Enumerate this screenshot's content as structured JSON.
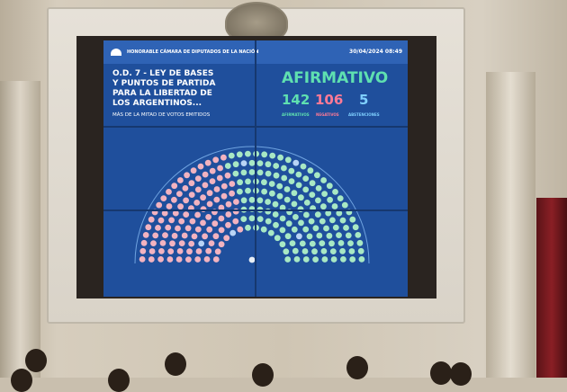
{
  "screen": {
    "institution": "HONORABLE CÁMARA DE DIPUTADOS DE LA NACIÓN",
    "datetime": "30/04/2024 08:49",
    "title_lines": [
      "O.D. 7 - LEY DE BASES",
      "Y PUNTOS DE PARTIDA",
      "PARA LA LIBERTAD DE",
      "LOS ARGENTINOS..."
    ],
    "majority": "MÁS DE LA MITAD DE VOTOS EMITIDOS",
    "result": "AFIRMATIVO",
    "counts": [
      {
        "value": "142",
        "label": "AFIRMATIVOS",
        "color": "#5fe0b0"
      },
      {
        "value": "106",
        "label": "NEGATIVOS",
        "color": "#ff7a96"
      },
      {
        "value": "5",
        "label": "ABSTENCIONES",
        "color": "#7fd0ff"
      }
    ],
    "seat_colors": {
      "afirmativo": "#a8e8c4",
      "negativo": "#f2b3c0",
      "abstencion": "#b9d4f5",
      "background": "#1f4f9c"
    }
  }
}
